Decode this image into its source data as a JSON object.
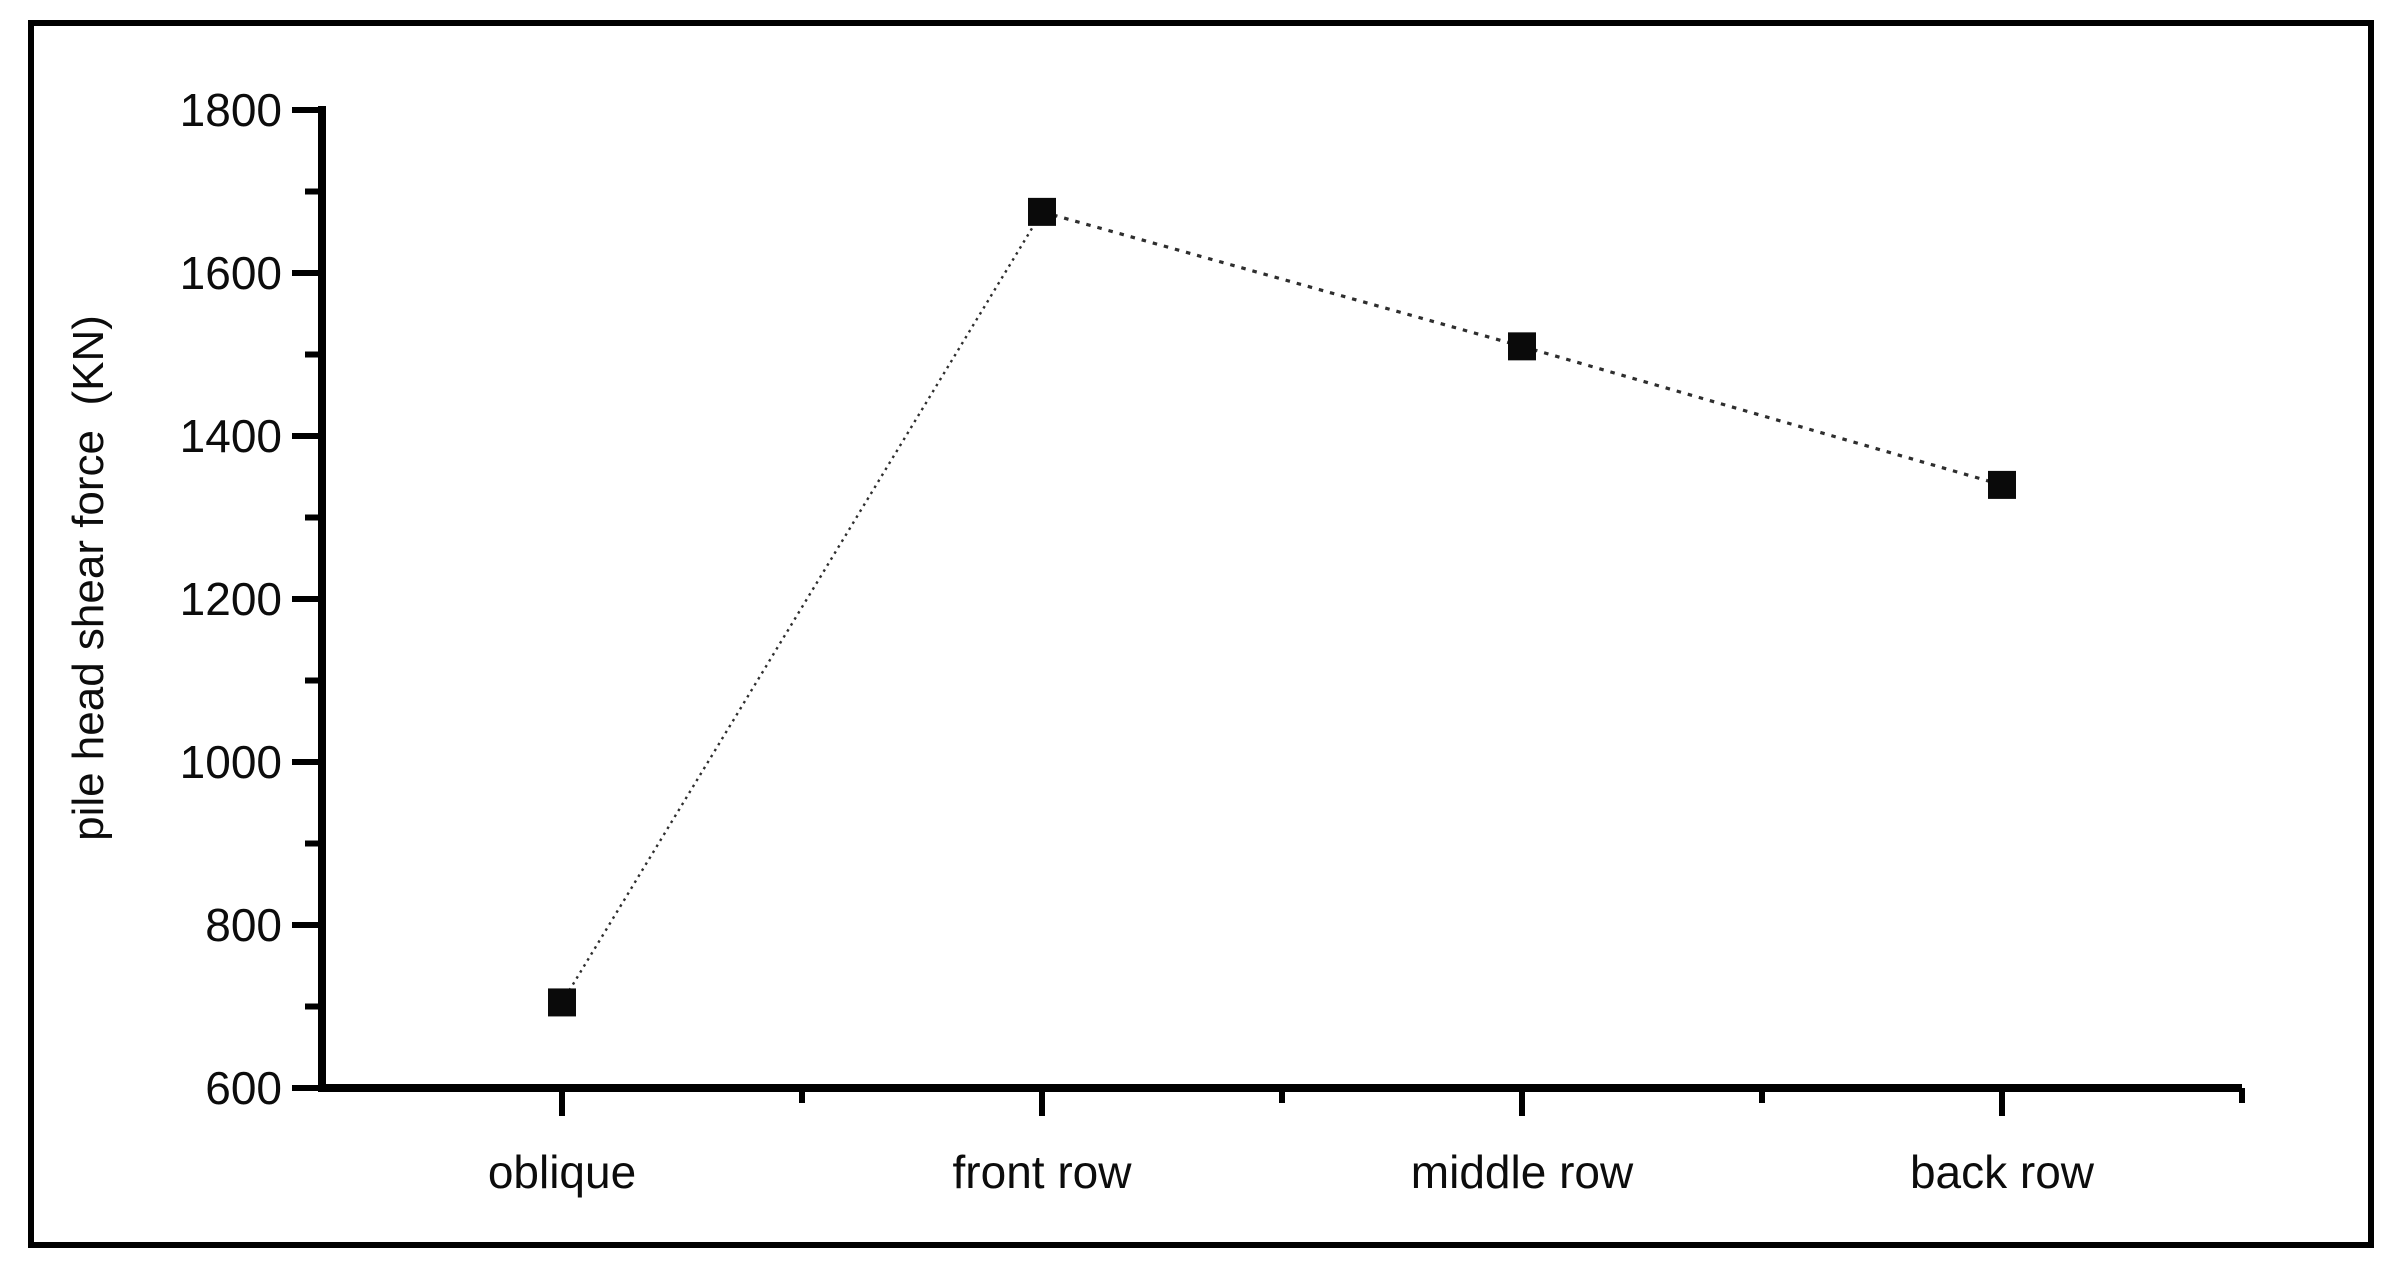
{
  "figure": {
    "background_color": "#ffffff",
    "border_color": "#000000"
  },
  "chart_data": {
    "type": "line",
    "title": "",
    "categories": [
      "oblique",
      "front row",
      "middle row",
      "back row"
    ],
    "series": [
      {
        "name": "pile head shear force",
        "values": [
          705,
          1675,
          1510,
          1340
        ]
      }
    ],
    "xlabel": "",
    "ylabel": "pile head shear force  (KN)",
    "ylim": [
      600,
      1800
    ],
    "ytick_interval": 200,
    "ytick_labels": [
      "600",
      "800",
      "1000",
      "1200",
      "1400",
      "1600",
      "1800"
    ],
    "minor_ytick_interval": 100,
    "x_minor_ticks_between_categories": true,
    "grid": "off",
    "legend": "none",
    "marker": "filled-square",
    "marker_color": "#0a0a0a",
    "line_style": "dotted",
    "line_color": "#2e2e2e",
    "axis_color": "#000000",
    "text_color": "#0c0c0c"
  }
}
